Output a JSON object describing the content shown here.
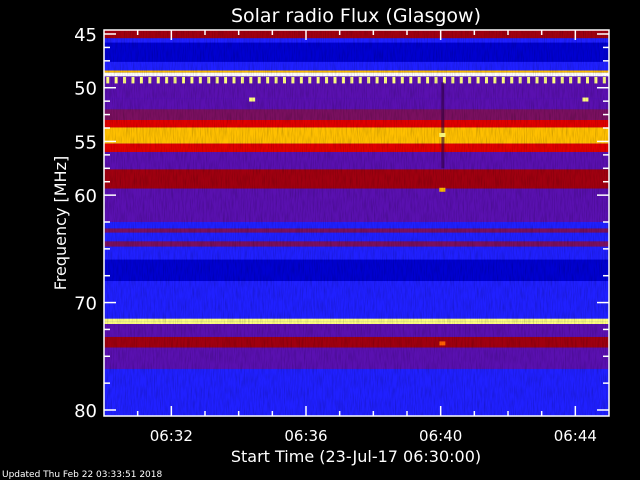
{
  "chart_data": {
    "type": "heatmap",
    "title": "Solar radio Flux (Glasgow)",
    "xlabel": "Start Time (23-Jul-17 06:30:00)",
    "ylabel_text": "Frequency ",
    "ylabel_unit": "[MHz]",
    "xlim_minutes_after_start": [
      0,
      15
    ],
    "x_tick_labels": [
      "06:32",
      "06:36",
      "06:40",
      "06:44"
    ],
    "x_tick_minutes": [
      2,
      6,
      10,
      14
    ],
    "ylim": [
      45,
      80
    ],
    "y_inverted": true,
    "y_tick_labels": [
      "45",
      "50",
      "55",
      "60",
      "70",
      "80"
    ],
    "y_ticks": [
      45,
      50,
      55,
      60,
      70,
      80
    ],
    "colormap": [
      "#000070",
      "#0000d0",
      "#2020ff",
      "#5a10b0",
      "#7a1060",
      "#a00010",
      "#e00000",
      "#ff6000",
      "#ffc000",
      "#ffff80",
      "#ffffff"
    ],
    "bands": [
      {
        "f0": 45.0,
        "f1": 45.4,
        "level": 0.5
      },
      {
        "f0": 45.4,
        "f1": 45.8,
        "level": 0.2
      },
      {
        "f0": 45.8,
        "f1": 47.6,
        "level": 0.06
      },
      {
        "f0": 47.6,
        "f1": 48.4,
        "level": 0.2
      },
      {
        "f0": 48.4,
        "f1": 48.6,
        "level": 0.75
      },
      {
        "f0": 48.6,
        "f1": 48.95,
        "level": 1.0
      },
      {
        "f0": 48.95,
        "f1": 49.5,
        "level": 0.3
      },
      {
        "f0": 49.5,
        "f1": 51.0,
        "level": 0.32
      },
      {
        "f0": 51.0,
        "f1": 52.0,
        "level": 0.27
      },
      {
        "f0": 52.0,
        "f1": 53.0,
        "level": 0.38
      },
      {
        "f0": 53.0,
        "f1": 53.7,
        "level": 0.55
      },
      {
        "f0": 53.7,
        "f1": 55.2,
        "level": 0.78
      },
      {
        "f0": 55.2,
        "f1": 56.0,
        "level": 0.62
      },
      {
        "f0": 56.0,
        "f1": 57.6,
        "level": 0.34
      },
      {
        "f0": 57.6,
        "f1": 59.4,
        "level": 0.52
      },
      {
        "f0": 59.4,
        "f1": 62.5,
        "level": 0.3
      },
      {
        "f0": 62.5,
        "f1": 63.1,
        "level": 0.18
      },
      {
        "f0": 63.1,
        "f1": 63.5,
        "level": 0.4
      },
      {
        "f0": 63.5,
        "f1": 64.3,
        "level": 0.17
      },
      {
        "f0": 64.3,
        "f1": 64.8,
        "level": 0.42
      },
      {
        "f0": 64.8,
        "f1": 66.0,
        "level": 0.18
      },
      {
        "f0": 66.0,
        "f1": 68.0,
        "level": 0.08
      },
      {
        "f0": 68.0,
        "f1": 71.5,
        "level": 0.17
      },
      {
        "f0": 71.5,
        "f1": 71.8,
        "level": 0.85
      },
      {
        "f0": 71.8,
        "f1": 72.0,
        "level": 0.92
      },
      {
        "f0": 72.0,
        "f1": 73.2,
        "level": 0.33
      },
      {
        "f0": 73.2,
        "f1": 74.2,
        "level": 0.47
      },
      {
        "f0": 74.2,
        "f1": 76.2,
        "level": 0.3
      },
      {
        "f0": 76.2,
        "f1": 80.0,
        "level": 0.19
      }
    ],
    "periodic_pulses": {
      "f0": 49.0,
      "f1": 49.6,
      "interval_s": 15,
      "level": 0.9
    },
    "spots": [
      {
        "t_min": 4.4,
        "f": 51.1,
        "level": 0.85
      },
      {
        "t_min": 14.3,
        "f": 51.1,
        "level": 0.85
      },
      {
        "t_min": 10.05,
        "f": 54.4,
        "level": 0.9
      },
      {
        "t_min": 10.05,
        "f": 59.5,
        "level": 0.75
      },
      {
        "t_min": 10.05,
        "f": 73.8,
        "level": 0.7
      }
    ],
    "dark_line": {
      "t_min": 10.05,
      "f0": 49.5,
      "f1": 57.5
    }
  },
  "footer": {
    "updated": "Updated Thu Feb 22 03:33:51 2018"
  }
}
